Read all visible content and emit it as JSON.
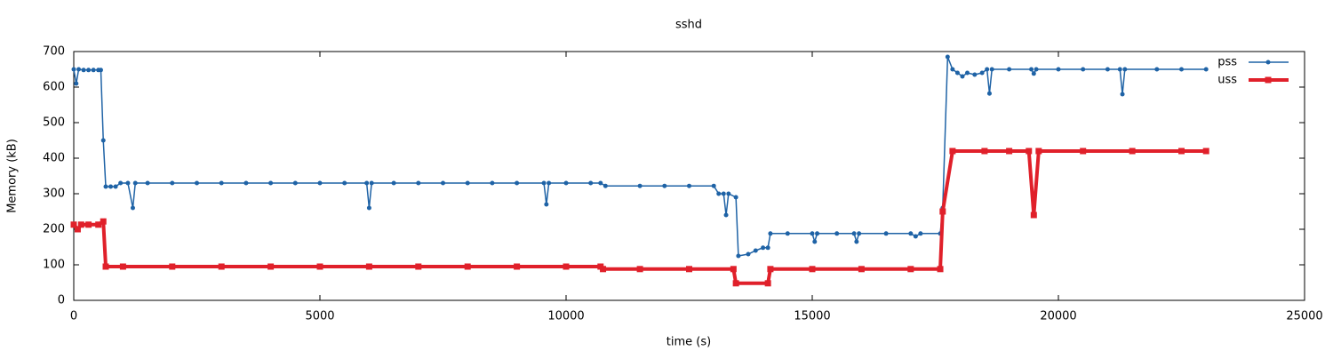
{
  "chart_data": {
    "type": "line",
    "title": "sshd",
    "x_label": "time (s)",
    "y_label": "Memory (kB)",
    "xlim": [
      0,
      25000
    ],
    "xticks": [
      0,
      5000,
      10000,
      15000,
      20000,
      25000
    ],
    "ylim": [
      0,
      700
    ],
    "yticks": [
      0,
      100,
      200,
      300,
      400,
      500,
      600,
      700
    ],
    "grid": false,
    "legend": "top-right",
    "series": [
      {
        "name": "pss",
        "color": "#1f63a6",
        "x": [
          0,
          50,
          100,
          200,
          300,
          400,
          500,
          550,
          600,
          650,
          750,
          850,
          950,
          1100,
          1200,
          1250,
          1500,
          2000,
          2500,
          3000,
          3500,
          4000,
          4500,
          5000,
          5500,
          5950,
          6000,
          6050,
          6500,
          7000,
          7500,
          8000,
          8500,
          9000,
          9550,
          9600,
          9650,
          10000,
          10500,
          10700,
          10800,
          11500,
          12000,
          12500,
          13000,
          13100,
          13200,
          13250,
          13300,
          13450,
          13500,
          13700,
          13850,
          14000,
          14100,
          14150,
          14500,
          15000,
          15050,
          15100,
          15500,
          15850,
          15900,
          15950,
          16500,
          17000,
          17100,
          17200,
          17600,
          17650,
          17750,
          17850,
          17950,
          18050,
          18150,
          18300,
          18450,
          18550,
          18600,
          18650,
          19000,
          19450,
          19500,
          19550,
          20000,
          20500,
          21000,
          21250,
          21300,
          21350,
          22000,
          22500,
          23000
        ],
        "values": [
          650,
          610,
          650,
          648,
          648,
          648,
          648,
          648,
          450,
          320,
          320,
          320,
          330,
          330,
          260,
          330,
          330,
          330,
          330,
          330,
          330,
          330,
          330,
          330,
          330,
          330,
          260,
          330,
          330,
          330,
          330,
          330,
          330,
          330,
          330,
          270,
          330,
          330,
          330,
          330,
          322,
          322,
          322,
          322,
          322,
          300,
          300,
          240,
          300,
          290,
          125,
          130,
          140,
          148,
          148,
          188,
          188,
          188,
          165,
          188,
          188,
          188,
          165,
          188,
          188,
          188,
          180,
          188,
          188,
          260,
          685,
          650,
          640,
          630,
          640,
          635,
          640,
          650,
          582,
          650,
          650,
          650,
          638,
          650,
          650,
          650,
          650,
          650,
          580,
          650,
          650,
          650,
          650
        ]
      },
      {
        "name": "uss",
        "color": "#e0202a",
        "x": [
          0,
          80,
          150,
          300,
          500,
          600,
          650,
          1000,
          2000,
          3000,
          4000,
          5000,
          6000,
          7000,
          8000,
          9000,
          10000,
          10700,
          10750,
          11500,
          12500,
          13400,
          13450,
          14100,
          14150,
          15000,
          16000,
          17000,
          17600,
          17650,
          17850,
          18500,
          19000,
          19400,
          19500,
          19600,
          20500,
          21500,
          22500,
          23000
        ],
        "values": [
          213,
          200,
          213,
          213,
          213,
          222,
          95,
          95,
          95,
          95,
          95,
          95,
          95,
          95,
          95,
          95,
          95,
          95,
          88,
          88,
          88,
          88,
          48,
          48,
          88,
          88,
          88,
          88,
          88,
          250,
          420,
          420,
          420,
          420,
          240,
          420,
          420,
          420,
          420,
          420
        ]
      }
    ]
  }
}
